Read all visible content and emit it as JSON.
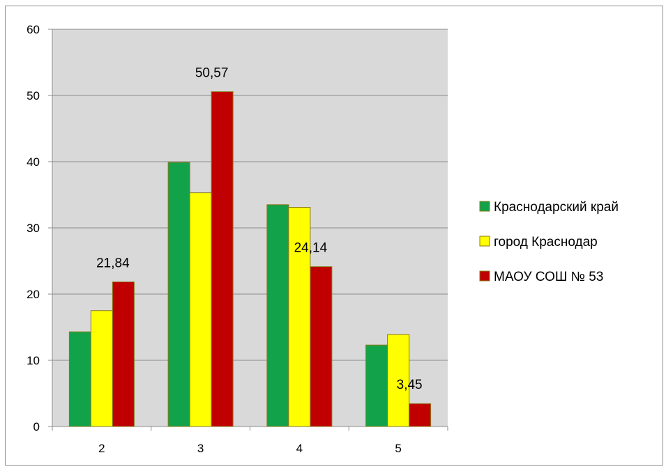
{
  "chart_data": {
    "type": "bar",
    "categories": [
      "2",
      "3",
      "4",
      "5"
    ],
    "series": [
      {
        "name": "Краснодарский край",
        "color": "#12a34a",
        "values": [
          14.3,
          39.9,
          33.5,
          12.3
        ]
      },
      {
        "name": "город Краснодар",
        "color": "#ffff00",
        "values": [
          17.5,
          35.3,
          33.1,
          13.9
        ]
      },
      {
        "name": "МАОУ СОШ № 53",
        "color": "#c00000",
        "values": [
          21.84,
          50.57,
          24.14,
          3.45
        ]
      }
    ],
    "data_labels": [
      {
        "series": 2,
        "category": 0,
        "text": "21,84"
      },
      {
        "series": 2,
        "category": 1,
        "text": "50,57"
      },
      {
        "series": 2,
        "category": 2,
        "text": "24,14"
      },
      {
        "series": 2,
        "category": 3,
        "text": "3,45"
      }
    ],
    "ylim": [
      0,
      60
    ],
    "yticks": [
      0,
      10,
      20,
      30,
      40,
      50,
      60
    ],
    "grid": true,
    "plot_background": "#d9d9d9",
    "legend_position": "right",
    "title": "",
    "xlabel": "",
    "ylabel": ""
  }
}
